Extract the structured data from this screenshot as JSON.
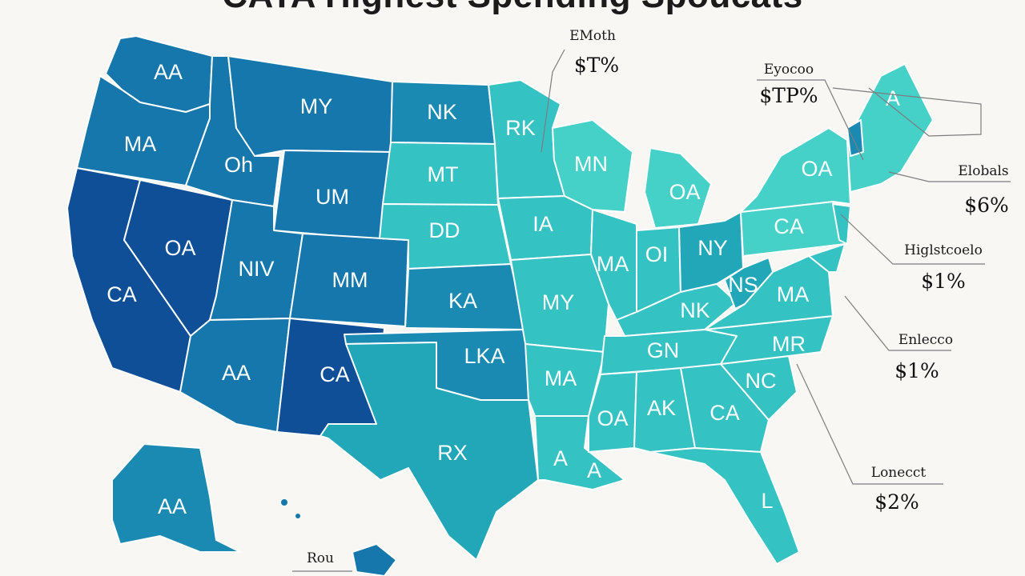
{
  "title": "CATA Highest Spending Spoucats",
  "colors": {
    "background": "#f8f7f4",
    "dark_navy": "#0f4f97",
    "blue": "#1677ad",
    "mid_blue": "#1a8ab3",
    "teal": "#22a7b9",
    "aqua": "#35c2c3",
    "light_aqua": "#45d0c8",
    "state_label": "#ffffff"
  },
  "state_labels": {
    "wa": "AA",
    "or": "MA",
    "ca": "CA",
    "nv": "OA",
    "id": "Oh",
    "mt": "MY",
    "wy": "UM",
    "ut": "NIV",
    "co": "MM",
    "az": "AA",
    "nm": "CA",
    "nd": "NK",
    "sd": "MT",
    "ne": "DD",
    "ks": "KA",
    "ok": "LKA",
    "tx": "RX",
    "mn": "RK",
    "ia": "IA",
    "mo": "MY",
    "ar": "MA",
    "la": "A",
    "wi": "MN",
    "il": "MA",
    "mi": "OA",
    "in": "OI",
    "oh": "NY",
    "ky": "NK",
    "tn": "GN",
    "ms": "OA",
    "al": "AK",
    "ga": "CA",
    "fl": "L",
    "sc": "NC",
    "nc": "MR",
    "va": "MA",
    "wv": "NS",
    "pa": "CA",
    "ny": "OA",
    "me": "A",
    "gulf": "A",
    "ak": "AA"
  },
  "callouts": [
    {
      "label": "EMoth",
      "value": "$T%"
    },
    {
      "label": "Eyocoo",
      "value": "$TP%"
    },
    {
      "label": "Elobals",
      "value": "$6%"
    },
    {
      "label": "Higlstcoelo",
      "value": "$1%"
    },
    {
      "label": "Enlecco",
      "value": "$1%"
    },
    {
      "label": "Lonecct",
      "value": "$2%"
    }
  ],
  "hawaii_label": "Rou"
}
